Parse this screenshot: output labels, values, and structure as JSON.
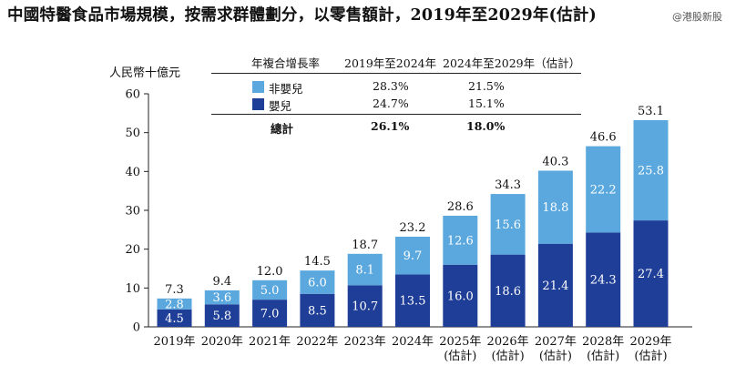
{
  "title": "中國特醫食品市場規模，按需求群體劃分，以零售額計，2019年至2029年(估計)",
  "watermark": "@港股新股",
  "colors": {
    "light": "#5aa8de",
    "dark": "#1f3e97",
    "axis": "#222222",
    "title": "#111111"
  },
  "legend_table": {
    "header": {
      "metric": "年複合增長率",
      "col1": "2019年至2024年",
      "col2": "2024年至2029年（估計）"
    },
    "rows": [
      {
        "name": "非嬰兒",
        "col1": "28.3%",
        "col2": "21.5%",
        "color": "#5aa8de"
      },
      {
        "name": "嬰兒",
        "col1": "24.7%",
        "col2": "15.1%",
        "color": "#1f3e97"
      }
    ],
    "total": {
      "name": "總計",
      "col1": "26.1%",
      "col2": "18.0%"
    }
  },
  "chart_data": {
    "type": "bar",
    "stacked": true,
    "ylabel": "人民幣十億元",
    "ylim": [
      0,
      60
    ],
    "yticks": [
      0,
      10,
      20,
      30,
      40,
      50,
      60
    ],
    "categories": [
      "2019年",
      "2020年",
      "2021年",
      "2022年",
      "2023年",
      "2024年",
      "2025年",
      "2026年",
      "2027年",
      "2028年",
      "2029年"
    ],
    "category_sublabels": [
      "",
      "",
      "",
      "",
      "",
      "",
      "(估計)",
      "(估計)",
      "(估計)",
      "(估計)",
      "(估計)"
    ],
    "series": [
      {
        "name": "嬰兒",
        "color": "#1f3e97",
        "values": [
          4.5,
          5.8,
          7.0,
          8.5,
          10.7,
          13.5,
          16.0,
          18.6,
          21.4,
          24.3,
          27.4
        ]
      },
      {
        "name": "非嬰兒",
        "color": "#5aa8de",
        "values": [
          2.8,
          3.6,
          5.0,
          6.0,
          8.1,
          9.7,
          12.6,
          15.6,
          18.8,
          22.2,
          25.8
        ]
      }
    ],
    "totals": [
      7.3,
      9.4,
      12.0,
      14.5,
      18.7,
      23.2,
      28.6,
      34.3,
      40.3,
      46.6,
      53.1
    ],
    "grid": false,
    "legend_position": "top"
  }
}
